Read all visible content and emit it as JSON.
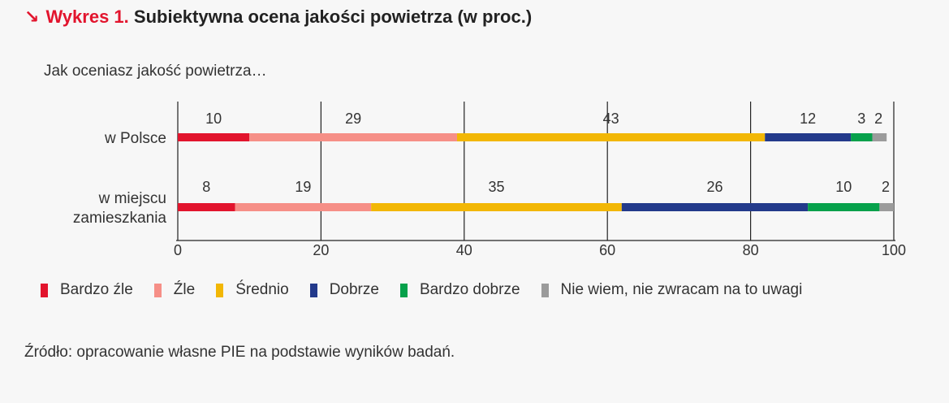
{
  "header": {
    "arrow": "↘",
    "prefix": "Wykres 1.",
    "title": "Subiektywna ocena jakości powietrza (w proc.)"
  },
  "subtitle": "Jak oceniasz jakość powietrza…",
  "source": "Źródło: opracowanie własne PIE na podstawie wyników badań.",
  "chart_data": {
    "type": "bar",
    "orientation": "horizontal",
    "stacked": true,
    "categories": [
      "w Polsce",
      "w miejscu zamieszkania"
    ],
    "category_lines": [
      [
        "w Polsce"
      ],
      [
        "w miejscu",
        "zamieszkania"
      ]
    ],
    "series": [
      {
        "name": "Bardzo źle",
        "color": "#e2142d",
        "values": [
          10,
          8
        ]
      },
      {
        "name": "Źle",
        "color": "#f68f87",
        "values": [
          29,
          19
        ]
      },
      {
        "name": "Średnio",
        "color": "#f2b705",
        "values": [
          43,
          35
        ]
      },
      {
        "name": "Dobrze",
        "color": "#233a8b",
        "values": [
          12,
          26
        ]
      },
      {
        "name": "Bardzo dobrze",
        "color": "#06a14b",
        "values": [
          3,
          10
        ]
      },
      {
        "name": "Nie wiem, nie zwracam na to uwagi",
        "color": "#9b9b9b",
        "values": [
          2,
          2
        ]
      }
    ],
    "xlim": [
      0,
      100
    ],
    "xticks": [
      0,
      20,
      40,
      60,
      80,
      100
    ],
    "grid": true,
    "legend": "bottom"
  }
}
